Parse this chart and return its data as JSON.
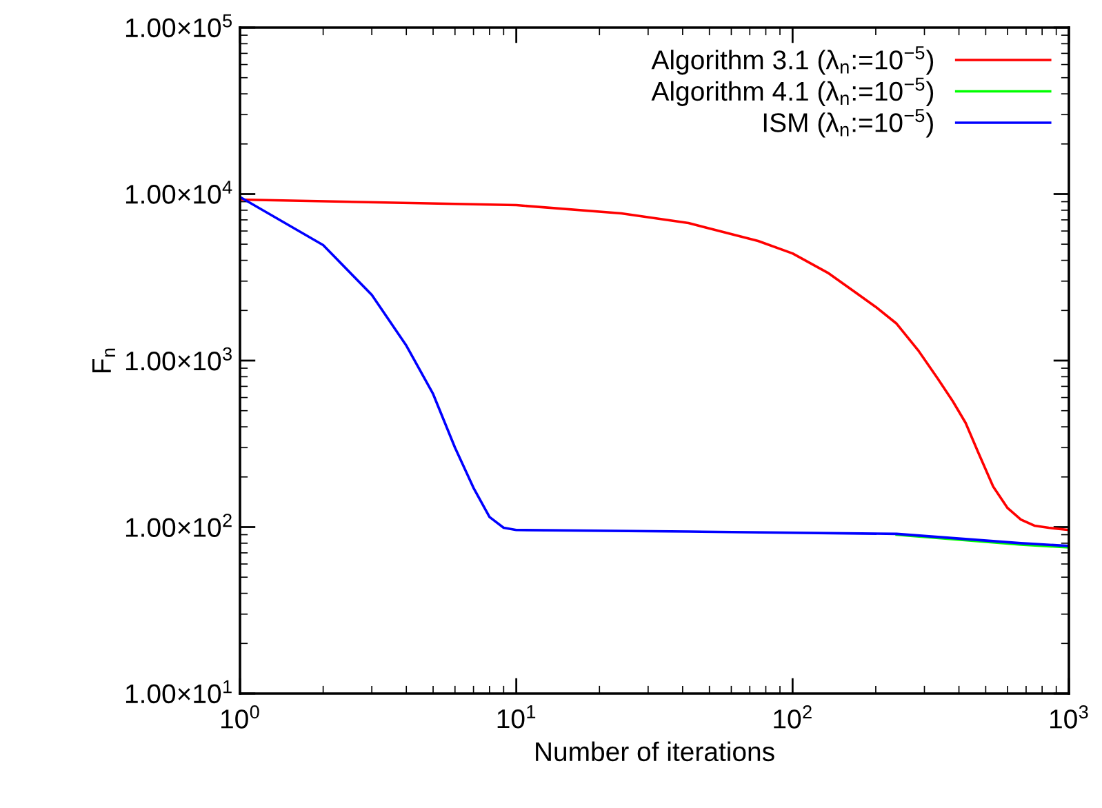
{
  "chart_data": {
    "type": "line",
    "xlabel": "Number of iterations",
    "ylabel": "F$_{n}$",
    "log": "xy",
    "xlim": [
      1,
      1000
    ],
    "ylim": [
      10,
      100000
    ],
    "xticks": [
      {
        "value": 1,
        "label": "10$^{0}$"
      },
      {
        "value": 10,
        "label": "10$^{1}$"
      },
      {
        "value": 100,
        "label": "10$^{2}$"
      },
      {
        "value": 1000,
        "label": "10$^{3}$"
      }
    ],
    "yticks": [
      {
        "value": 10,
        "label": "1.00×10$^{1}$"
      },
      {
        "value": 100,
        "label": "1.00×10$^{2}$"
      },
      {
        "value": 1000,
        "label": "1.00×10$^{3}$"
      },
      {
        "value": 10000,
        "label": "1.00×10$^{4}$"
      },
      {
        "value": 100000,
        "label": "1.00×10$^{5}$"
      }
    ],
    "grid": false,
    "legend": "top right",
    "marker": "none",
    "line_style": "solid",
    "series": [
      {
        "name": "Algorithm 3.1 (λ$_{n}$:=10$^{−5}$)",
        "color": "#ff0000",
        "x": [
          1,
          10,
          24,
          42,
          75,
          100,
          134,
          168,
          200,
          238,
          285,
          335,
          380,
          423,
          470,
          532,
          600,
          670,
          750,
          845,
          1000
        ],
        "values": [
          9270,
          8580,
          7660,
          6700,
          5230,
          4400,
          3370,
          2580,
          2100,
          1665,
          1150,
          780,
          570,
          422,
          280,
          175,
          130,
          111,
          102,
          99,
          96
        ]
      },
      {
        "name": "Algorithm 4.1 (λ$_{n}$:=10$^{−5}$)",
        "color": "#00ff00",
        "x": [
          238,
          670,
          1000
        ],
        "values": [
          90,
          78.5,
          75.5
        ]
      },
      {
        "name": "ISM (λ$_{n}$:=10$^{−5}$)",
        "color": "#0000ff",
        "x": [
          1,
          2,
          3,
          4,
          5,
          6,
          7,
          8,
          9,
          10,
          42,
          238,
          670,
          1000
        ],
        "values": [
          9600,
          4940,
          2480,
          1230,
          630,
          300,
          172,
          115,
          99,
          96,
          94,
          91,
          80,
          77
        ]
      }
    ]
  }
}
